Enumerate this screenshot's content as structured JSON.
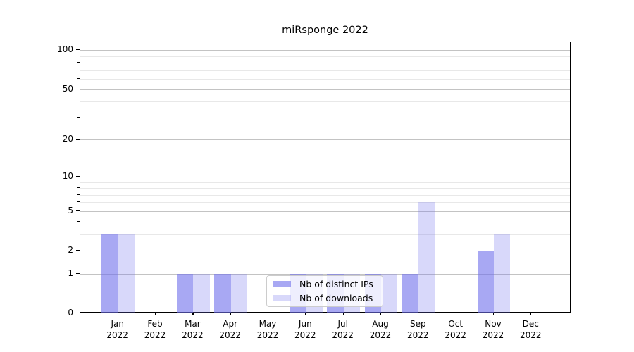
{
  "title": "miRsponge 2022",
  "chart_data": {
    "type": "bar",
    "title": "miRsponge 2022",
    "categories": [
      "Jan",
      "Feb",
      "Mar",
      "Apr",
      "May",
      "Jun",
      "Jul",
      "Aug",
      "Sep",
      "Oct",
      "Nov",
      "Dec"
    ],
    "year": "2022",
    "series": [
      {
        "name": "Nb of distinct IPs",
        "color": "rgba(110,110,235,0.60)",
        "values": [
          3,
          0,
          1,
          1,
          0,
          1,
          1,
          1,
          1,
          0,
          2,
          0
        ]
      },
      {
        "name": "Nb of downloads",
        "color": "rgba(110,110,235,0.27)",
        "values": [
          3,
          0,
          1,
          1,
          0,
          1,
          1,
          1,
          6,
          0,
          3,
          0
        ]
      }
    ],
    "yticks": [
      0,
      1,
      2,
      5,
      10,
      20,
      50,
      100
    ],
    "minor_yticks": [
      3,
      4,
      6,
      7,
      8,
      9,
      30,
      40,
      60,
      70,
      80,
      90
    ],
    "scale": "log10(1+y)",
    "ylim": [
      0,
      115
    ],
    "xlabel": "",
    "ylabel": "",
    "grid": true,
    "legend_position": "lower center",
    "axis_color": "#000000",
    "major_grid_color": "#c3c3c3",
    "minor_grid_color": "#e8e8e8"
  }
}
